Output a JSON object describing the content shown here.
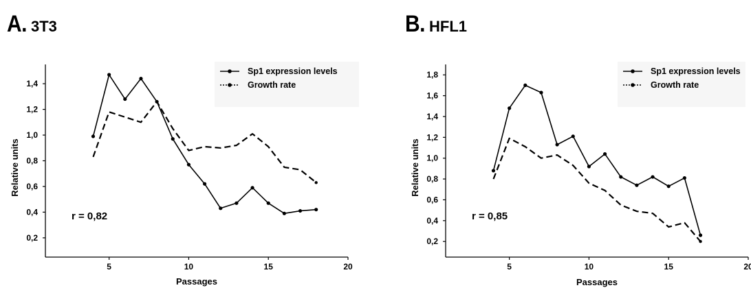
{
  "panels": [
    {
      "letter": "A.",
      "name": "3T3"
    },
    {
      "letter": "B.",
      "name": "HFL1"
    }
  ],
  "chart_data": [
    {
      "type": "line",
      "title": "A. 3T3",
      "xlabel": "Passages",
      "ylabel": "Relative units",
      "xlim": [
        1,
        20
      ],
      "ylim": [
        0.05,
        1.55
      ],
      "xticks": [
        5,
        10,
        15,
        20
      ],
      "yticks": [
        0.2,
        0.4,
        0.6,
        0.8,
        1.0,
        1.2,
        1.4
      ],
      "ytick_labels": [
        "0,2",
        "0,4",
        "0,6",
        "0,8",
        "1,0",
        "1,2",
        "1,4"
      ],
      "grid": false,
      "legend_position": "top-right",
      "annotation": "r = 0,82",
      "series": [
        {
          "name": "Sp1 expression levels",
          "style": "solid",
          "points": [
            [
              4,
              0.99
            ],
            [
              5,
              1.47
            ],
            [
              6,
              1.28
            ],
            [
              7,
              1.44
            ],
            [
              8,
              1.26
            ],
            [
              9,
              0.97
            ],
            [
              10,
              0.77
            ],
            [
              11,
              0.62
            ],
            [
              12,
              0.43
            ],
            [
              13,
              0.47
            ],
            [
              14,
              0.59
            ],
            [
              15,
              0.47
            ],
            [
              16,
              0.39
            ],
            [
              17,
              0.41
            ],
            [
              18,
              0.42
            ]
          ]
        },
        {
          "name": "Growth rate",
          "style": "dashed",
          "points": [
            [
              4,
              0.83
            ],
            [
              5,
              1.18
            ],
            [
              6,
              1.14
            ],
            [
              7,
              1.1
            ],
            [
              8,
              1.26
            ],
            [
              9,
              1.05
            ],
            [
              10,
              0.88
            ],
            [
              11,
              0.91
            ],
            [
              12,
              0.9
            ],
            [
              13,
              0.92
            ],
            [
              14,
              1.01
            ],
            [
              15,
              0.91
            ],
            [
              16,
              0.75
            ],
            [
              17,
              0.73
            ],
            [
              18,
              0.63
            ]
          ]
        }
      ]
    },
    {
      "type": "line",
      "title": "B. HFL1",
      "xlabel": "Passages",
      "ylabel": "Relative units",
      "xlim": [
        1,
        20
      ],
      "ylim": [
        0.05,
        1.9
      ],
      "xticks": [
        5,
        10,
        15,
        20
      ],
      "yticks": [
        0.2,
        0.4,
        0.6,
        0.8,
        1.0,
        1.2,
        1.4,
        1.6,
        1.8
      ],
      "ytick_labels": [
        "0,2",
        "0,4",
        "0,6",
        "0,8",
        "1,0",
        "1,2",
        "1,4",
        "1,6",
        "1,8"
      ],
      "grid": false,
      "legend_position": "top-right",
      "annotation": "r = 0,85",
      "series": [
        {
          "name": "Sp1 expression levels",
          "style": "solid",
          "points": [
            [
              4,
              0.88
            ],
            [
              5,
              1.48
            ],
            [
              6,
              1.7
            ],
            [
              7,
              1.63
            ],
            [
              8,
              1.13
            ],
            [
              9,
              1.21
            ],
            [
              10,
              0.92
            ],
            [
              11,
              1.04
            ],
            [
              12,
              0.82
            ],
            [
              13,
              0.74
            ],
            [
              14,
              0.82
            ],
            [
              15,
              0.73
            ],
            [
              16,
              0.81
            ],
            [
              17,
              0.26
            ]
          ]
        },
        {
          "name": "Growth rate",
          "style": "dashed",
          "points": [
            [
              4,
              0.8
            ],
            [
              5,
              1.19
            ],
            [
              6,
              1.11
            ],
            [
              7,
              1.0
            ],
            [
              8,
              1.03
            ],
            [
              9,
              0.93
            ],
            [
              10,
              0.76
            ],
            [
              11,
              0.69
            ],
            [
              12,
              0.55
            ],
            [
              13,
              0.49
            ],
            [
              14,
              0.47
            ],
            [
              15,
              0.34
            ],
            [
              16,
              0.38
            ],
            [
              17,
              0.2
            ]
          ]
        }
      ]
    }
  ]
}
